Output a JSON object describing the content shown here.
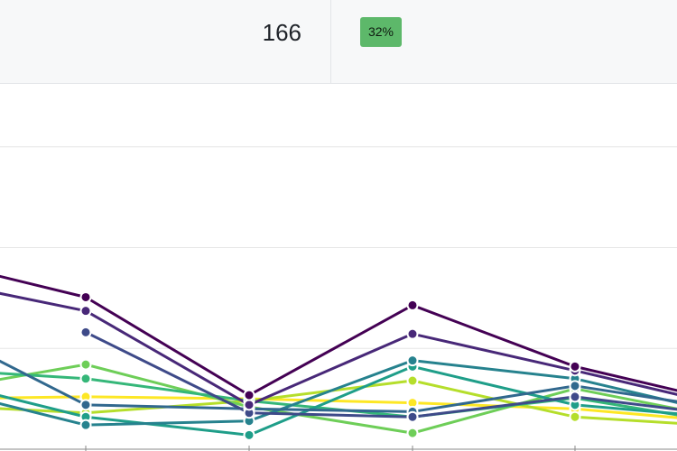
{
  "header": {
    "stat_value": "166",
    "badge_text": "32%",
    "badge_color": "#5db86a"
  },
  "chart_data": {
    "type": "line",
    "x": [
      0,
      1,
      2,
      3,
      4,
      5
    ],
    "ylim": [
      0,
      100
    ],
    "grid": true,
    "legend": "none",
    "series": [
      {
        "color": "#440154",
        "values": [
          47.5,
          37.7,
          13.4,
          35.7,
          20.5,
          11.0
        ]
      },
      {
        "color": "#482878",
        "values": [
          42.5,
          34.3,
          11.0,
          28.6,
          19.5,
          10.0
        ]
      },
      {
        "color": "#3e4a89",
        "values": [
          null,
          29.0,
          9.0,
          8.0,
          13.0,
          8.0
        ]
      },
      {
        "color": "#31688e",
        "values": [
          31.5,
          11.0,
          10.0,
          9.3,
          15.7,
          9.5
        ]
      },
      {
        "color": "#26828e",
        "values": [
          16.0,
          6.0,
          7.0,
          22.0,
          17.5,
          8.0
        ]
      },
      {
        "color": "#1f9e89",
        "values": [
          18.0,
          8.0,
          3.5,
          20.5,
          11.0,
          7.5
        ]
      },
      {
        "color": "#35b779",
        "values": [
          20.0,
          17.5,
          12.0,
          8.0,
          12.7,
          6.0
        ]
      },
      {
        "color": "#6ece58",
        "values": [
          14.0,
          21.0,
          10.5,
          4.0,
          15.0,
          7.0
        ]
      },
      {
        "color": "#b5de2b",
        "values": [
          11.0,
          9.0,
          12.0,
          17.0,
          8.0,
          5.5
        ]
      },
      {
        "color": "#fde725",
        "values": [
          12.5,
          13.0,
          12.5,
          11.5,
          10.0,
          6.5
        ]
      }
    ]
  }
}
